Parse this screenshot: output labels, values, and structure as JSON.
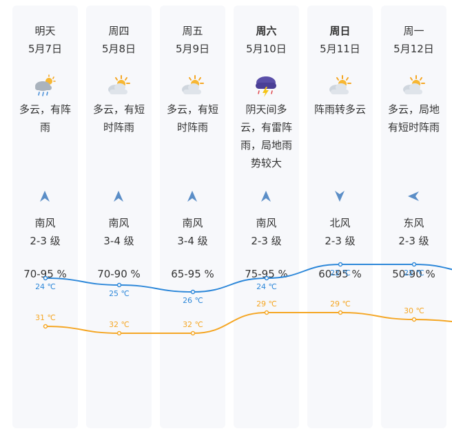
{
  "days": [
    {
      "name": "明天",
      "date": "5月7日",
      "bold": false,
      "icon": "partly-cloudy-rain-icon",
      "desc": "多云，有阵雨",
      "wind_arrow": "wind-arrow-north-icon",
      "wind_dir": "南风",
      "wind_level": "2-3 级",
      "humidity": "70-95 %",
      "high": "31 ℃",
      "low": "24 ℃"
    },
    {
      "name": "周四",
      "date": "5月8日",
      "bold": false,
      "icon": "partly-cloudy-sun-icon",
      "desc": "多云，有短时阵雨",
      "wind_arrow": "wind-arrow-north-icon",
      "wind_dir": "南风",
      "wind_level": "3-4 级",
      "humidity": "70-90 %",
      "high": "32 ℃",
      "low": "25 ℃"
    },
    {
      "name": "周五",
      "date": "5月9日",
      "bold": false,
      "icon": "partly-cloudy-sun-icon",
      "desc": "多云，有短时阵雨",
      "wind_arrow": "wind-arrow-north-icon",
      "wind_dir": "南风",
      "wind_level": "3-4 级",
      "humidity": "65-95 %",
      "high": "32 ℃",
      "low": "26 ℃"
    },
    {
      "name": "周六",
      "date": "5月10日",
      "bold": true,
      "icon": "thunderstorm-icon",
      "desc": "阴天间多云，有雷阵雨，局地雨势较大",
      "wind_arrow": "wind-arrow-north-icon",
      "wind_dir": "南风",
      "wind_level": "2-3 级",
      "humidity": "75-95 %",
      "high": "29 ℃",
      "low": "24 ℃"
    },
    {
      "name": "周日",
      "date": "5月11日",
      "bold": true,
      "icon": "partly-cloudy-sun-icon",
      "desc": "阵雨转多云",
      "wind_arrow": "wind-arrow-south-icon",
      "wind_dir": "北风",
      "wind_level": "2-3 级",
      "humidity": "60-95 %",
      "high": "29 ℃",
      "low": "22 ℃"
    },
    {
      "name": "周一",
      "date": "5月12日",
      "bold": false,
      "icon": "partly-cloudy-sun-icon",
      "desc": "多云，局地有短时阵雨",
      "wind_arrow": "wind-arrow-west-icon",
      "wind_dir": "东风",
      "wind_level": "2-3 级",
      "humidity": "50-90 %",
      "high": "30 ℃",
      "low": "22 ℃"
    }
  ],
  "colors": {
    "high": "#f5a623",
    "low": "#2c87d9",
    "arrow": "#5b8ec7"
  },
  "chart_data": {
    "type": "line",
    "categories": [
      "5月7日",
      "5月8日",
      "5月9日",
      "5月10日",
      "5月11日",
      "5月12日"
    ],
    "series": [
      {
        "values": [
          31,
          32,
          32,
          29,
          29,
          30
        ]
      },
      {
        "values": [
          24,
          25,
          26,
          24,
          22,
          22
        ]
      }
    ]
  }
}
